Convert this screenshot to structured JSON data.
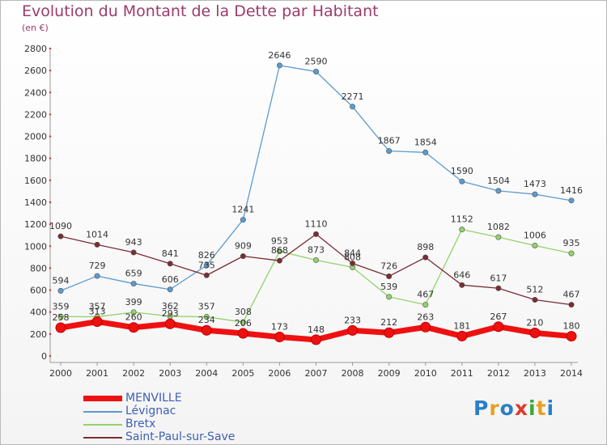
{
  "header": {
    "title": "Evolution du Montant de la Dette par Habitant",
    "unit": "(en €)"
  },
  "logo": {
    "letters": [
      "P",
      "r",
      "o",
      "x",
      "i",
      "t",
      "i"
    ],
    "colors": [
      "#2a7fc8",
      "#e8a021",
      "#2a7fc8",
      "#e03a2a",
      "#3aa83a",
      "#e8a021",
      "#2a7fc8"
    ]
  },
  "chart_data": {
    "type": "line",
    "x": [
      2000,
      2001,
      2002,
      2003,
      2004,
      2005,
      2006,
      2007,
      2008,
      2009,
      2010,
      2011,
      2012,
      2013,
      2014
    ],
    "ylim": [
      0,
      2800
    ],
    "yticks": [
      0,
      200,
      400,
      600,
      800,
      1000,
      1200,
      1400,
      1600,
      1800,
      2000,
      2200,
      2400,
      2600,
      2800
    ],
    "grid": false,
    "legend_position": "bottom-left",
    "series": [
      {
        "name": "MENVILLE",
        "color": "#ee1111",
        "values": [
          258,
          313,
          260,
          293,
          234,
          206,
          173,
          148,
          233,
          212,
          263,
          181,
          267,
          210,
          180
        ],
        "labels": [
          "258",
          "313",
          "260",
          "293",
          "234",
          "206",
          "173",
          "148",
          "233",
          "212",
          "263",
          "181",
          "267",
          "210",
          "180"
        ]
      },
      {
        "name": "Lévignac",
        "color": "#5b9bd0",
        "values": [
          594,
          729,
          659,
          606,
          826,
          1241,
          2646,
          2590,
          2271,
          1867,
          1854,
          1590,
          1504,
          1473,
          1416
        ],
        "labels": [
          "594",
          "729",
          "659",
          "606",
          "826",
          "1241",
          "2646",
          "2590",
          "2271",
          "1867",
          "1854",
          "1590",
          "1504",
          "1473",
          "1416"
        ]
      },
      {
        "name": "Bretx",
        "color": "#92d36a",
        "values": [
          359,
          357,
          399,
          362,
          357,
          308,
          953,
          873,
          808,
          539,
          467,
          1152,
          1082,
          1006,
          935
        ],
        "labels": [
          "359",
          "357",
          "399",
          "362",
          "357",
          "308",
          "953",
          "873",
          "808",
          "539",
          "467",
          "1152",
          "1082",
          "1006",
          "935"
        ]
      },
      {
        "name": "Saint-Paul-sur-Save",
        "color": "#7b2c33",
        "values": [
          1090,
          1014,
          943,
          841,
          735,
          909,
          868,
          1110,
          844,
          726,
          898,
          646,
          617,
          512,
          467
        ],
        "labels": [
          "1090",
          "1014",
          "943",
          "841",
          "735",
          "909",
          "868",
          "1110",
          "844",
          "726",
          "898",
          "646",
          "617",
          "512",
          "467"
        ]
      }
    ]
  }
}
